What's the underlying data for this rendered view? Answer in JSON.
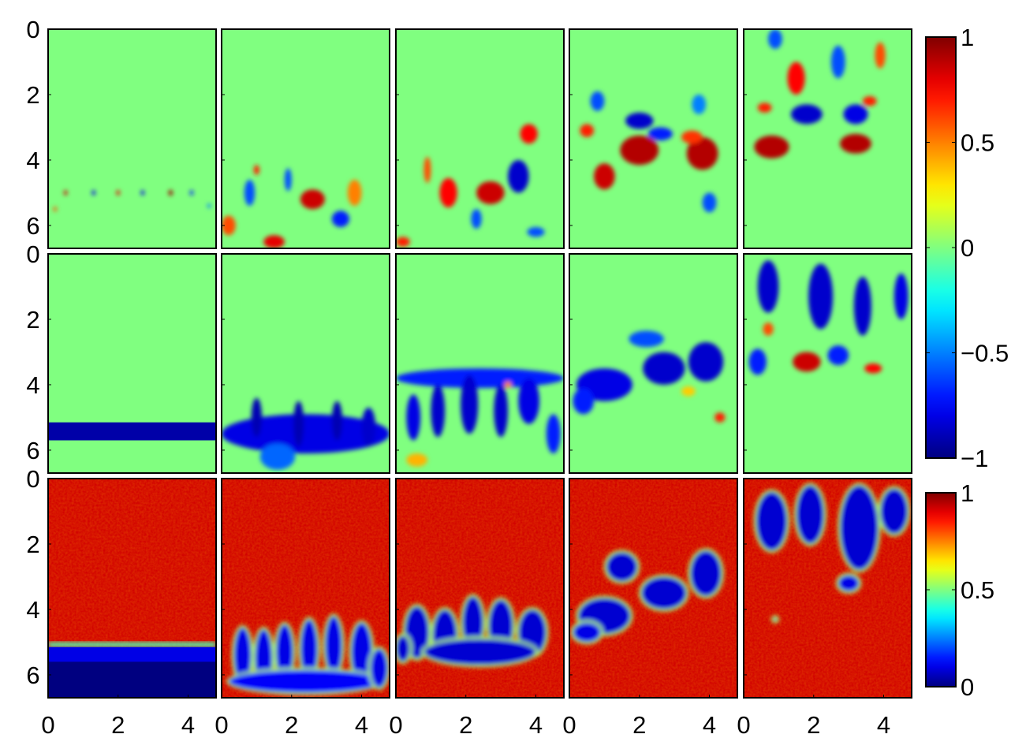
{
  "chart_data": {
    "type": "heatmap",
    "layout": {
      "rows": 3,
      "columns": 5
    },
    "x_axis": {
      "range": [
        0,
        4.8
      ],
      "ticks": [
        0,
        2,
        4
      ],
      "tick_labels": [
        "0",
        "2",
        "4"
      ]
    },
    "y_axis": {
      "range": [
        0,
        6.7
      ],
      "inverted": true,
      "ticks": [
        0,
        2,
        4,
        6
      ],
      "tick_labels": [
        "0",
        "2",
        "4",
        "6"
      ]
    },
    "colormap": "jet",
    "colorbars": [
      {
        "rows": [
          0,
          1
        ],
        "range": [
          -1,
          1
        ],
        "ticks": [
          1,
          0.5,
          0,
          -0.5,
          -1
        ],
        "tick_labels": [
          "1",
          "0.5",
          "0",
          "−0.5",
          "−1"
        ]
      },
      {
        "rows": [
          2
        ],
        "range": [
          0,
          1
        ],
        "ticks": [
          1,
          0.5,
          0
        ],
        "tick_labels": [
          "1",
          "0.5",
          "0"
        ]
      }
    ],
    "panels": [
      [
        {
          "background": 0.0,
          "blobs": [
            [
              0.5,
              5.0,
              0.05,
              0.08,
              0.85
            ],
            [
              1.3,
              5.0,
              0.05,
              0.08,
              -0.8
            ],
            [
              2.0,
              5.0,
              0.05,
              0.08,
              0.8
            ],
            [
              2.7,
              5.0,
              0.05,
              0.08,
              -0.8
            ],
            [
              3.5,
              5.0,
              0.06,
              0.09,
              0.95
            ],
            [
              4.1,
              5.0,
              0.05,
              0.08,
              -0.7
            ],
            [
              0.2,
              5.5,
              0.05,
              0.07,
              0.6
            ],
            [
              4.6,
              5.4,
              0.05,
              0.07,
              -0.5
            ]
          ]
        },
        {
          "background": 0.0,
          "blobs": [
            [
              2.6,
              5.2,
              0.35,
              0.3,
              0.85
            ],
            [
              1.5,
              6.5,
              0.3,
              0.2,
              0.8
            ],
            [
              3.4,
              5.8,
              0.25,
              0.25,
              -0.7
            ],
            [
              0.8,
              5.0,
              0.15,
              0.4,
              -0.6
            ],
            [
              1.9,
              4.6,
              0.1,
              0.35,
              -0.6
            ],
            [
              3.8,
              5.0,
              0.2,
              0.4,
              0.5
            ],
            [
              0.2,
              6.0,
              0.2,
              0.3,
              0.6
            ],
            [
              1.0,
              4.3,
              0.08,
              0.15,
              0.7
            ]
          ]
        },
        {
          "background": 0.0,
          "blobs": [
            [
              2.7,
              5.0,
              0.4,
              0.35,
              0.85
            ],
            [
              3.5,
              4.5,
              0.3,
              0.5,
              -0.85
            ],
            [
              1.5,
              5.0,
              0.25,
              0.45,
              0.75
            ],
            [
              3.8,
              3.2,
              0.25,
              0.3,
              0.75
            ],
            [
              0.9,
              4.3,
              0.1,
              0.4,
              0.6
            ],
            [
              2.3,
              5.8,
              0.15,
              0.3,
              -0.6
            ],
            [
              4.0,
              6.2,
              0.25,
              0.15,
              -0.6
            ],
            [
              0.2,
              6.5,
              0.2,
              0.15,
              0.7
            ]
          ]
        },
        {
          "background": 0.0,
          "blobs": [
            [
              2.0,
              3.7,
              0.55,
              0.45,
              0.9
            ],
            [
              3.8,
              3.8,
              0.45,
              0.5,
              0.9
            ],
            [
              1.0,
              4.5,
              0.3,
              0.4,
              0.85
            ],
            [
              2.0,
              2.8,
              0.4,
              0.25,
              -0.85
            ],
            [
              2.6,
              3.2,
              0.35,
              0.2,
              -0.7
            ],
            [
              0.5,
              3.1,
              0.2,
              0.2,
              0.7
            ],
            [
              0.8,
              2.2,
              0.2,
              0.3,
              -0.6
            ],
            [
              3.7,
              2.3,
              0.2,
              0.3,
              -0.5
            ],
            [
              4.0,
              5.3,
              0.2,
              0.3,
              -0.6
            ],
            [
              3.5,
              3.3,
              0.3,
              0.2,
              0.65
            ]
          ]
        },
        {
          "background": 0.0,
          "blobs": [
            [
              0.8,
              3.6,
              0.5,
              0.35,
              0.9
            ],
            [
              3.2,
              3.5,
              0.45,
              0.3,
              0.9
            ],
            [
              1.8,
              2.6,
              0.45,
              0.3,
              -0.85
            ],
            [
              3.2,
              2.6,
              0.35,
              0.3,
              -0.8
            ],
            [
              1.5,
              1.5,
              0.25,
              0.5,
              0.75
            ],
            [
              2.7,
              1.0,
              0.2,
              0.5,
              -0.6
            ],
            [
              3.9,
              0.8,
              0.15,
              0.4,
              0.6
            ],
            [
              3.6,
              2.2,
              0.2,
              0.15,
              0.7
            ],
            [
              0.6,
              2.4,
              0.2,
              0.15,
              0.7
            ],
            [
              0.9,
              0.3,
              0.2,
              0.3,
              -0.6
            ]
          ]
        }
      ],
      [
        {
          "background": 0.0,
          "blobs": [],
          "band": {
            "y0": 5.15,
            "y1": 5.7,
            "value": -0.92
          }
        },
        {
          "background": 0.0,
          "blobs": [
            [
              2.4,
              5.5,
              2.4,
              0.6,
              -0.8
            ],
            [
              1.0,
              5.0,
              0.15,
              0.6,
              -0.9
            ],
            [
              2.2,
              5.2,
              0.15,
              0.7,
              -0.9
            ],
            [
              3.3,
              5.1,
              0.15,
              0.6,
              -0.9
            ],
            [
              4.2,
              5.3,
              0.2,
              0.6,
              -0.85
            ],
            [
              1.6,
              6.2,
              0.5,
              0.4,
              -0.55
            ]
          ]
        },
        {
          "background": 0.0,
          "blobs": [
            [
              2.4,
              3.8,
              2.4,
              0.3,
              -0.7
            ],
            [
              1.2,
              4.8,
              0.2,
              0.8,
              -0.85
            ],
            [
              2.1,
              4.6,
              0.25,
              0.9,
              -0.85
            ],
            [
              3.0,
              4.8,
              0.2,
              0.8,
              -0.85
            ],
            [
              3.8,
              4.5,
              0.3,
              0.7,
              -0.8
            ],
            [
              0.5,
              5.0,
              0.2,
              0.7,
              -0.8
            ],
            [
              4.5,
              5.5,
              0.2,
              0.6,
              -0.7
            ],
            [
              3.2,
              4.0,
              0.1,
              0.1,
              0.5
            ],
            [
              0.6,
              6.3,
              0.3,
              0.2,
              0.4
            ]
          ]
        },
        {
          "background": 0.0,
          "blobs": [
            [
              1.0,
              4.0,
              0.8,
              0.5,
              -0.8
            ],
            [
              2.7,
              3.5,
              0.6,
              0.5,
              -0.85
            ],
            [
              3.9,
              3.3,
              0.5,
              0.6,
              -0.85
            ],
            [
              2.2,
              2.6,
              0.5,
              0.25,
              -0.6
            ],
            [
              0.4,
              4.5,
              0.3,
              0.4,
              -0.7
            ],
            [
              4.3,
              5.0,
              0.15,
              0.15,
              0.7
            ],
            [
              3.4,
              4.2,
              0.2,
              0.15,
              0.35
            ]
          ]
        },
        {
          "background": 0.0,
          "blobs": [
            [
              0.7,
              1.0,
              0.3,
              0.8,
              -0.85
            ],
            [
              2.2,
              1.3,
              0.35,
              1.0,
              -0.85
            ],
            [
              3.4,
              1.6,
              0.25,
              0.9,
              -0.85
            ],
            [
              4.5,
              1.3,
              0.2,
              0.7,
              -0.8
            ],
            [
              1.8,
              3.3,
              0.4,
              0.3,
              0.85
            ],
            [
              3.7,
              3.5,
              0.25,
              0.15,
              0.75
            ],
            [
              0.7,
              2.3,
              0.15,
              0.2,
              0.6
            ],
            [
              2.7,
              3.1,
              0.3,
              0.3,
              -0.7
            ],
            [
              0.4,
              3.3,
              0.25,
              0.4,
              -0.7
            ]
          ]
        }
      ],
      [
        {
          "background": 0.92,
          "blobs": [],
          "band": {
            "y0": 5.15,
            "y1": 6.7,
            "value": 0.1,
            "transition_y": 5.0,
            "deep_value": 0.0,
            "deep_y": 5.6
          }
        },
        {
          "background": 0.92,
          "blobs": [
            [
              0.6,
              5.4,
              0.25,
              0.85,
              0.1
            ],
            [
              1.2,
              5.5,
              0.25,
              0.9,
              0.1
            ],
            [
              1.8,
              5.3,
              0.25,
              0.85,
              0.1
            ],
            [
              2.5,
              5.2,
              0.25,
              0.9,
              0.1
            ],
            [
              3.2,
              5.1,
              0.25,
              0.9,
              0.1
            ],
            [
              4.0,
              5.3,
              0.3,
              0.9,
              0.1
            ],
            [
              2.4,
              6.2,
              2.2,
              0.35,
              0.12
            ],
            [
              4.5,
              5.8,
              0.25,
              0.6,
              0.1
            ]
          ]
        },
        {
          "background": 0.92,
          "blobs": [
            [
              0.6,
              4.7,
              0.35,
              0.8,
              0.08
            ],
            [
              1.4,
              4.8,
              0.35,
              0.8,
              0.08
            ],
            [
              2.2,
              4.4,
              0.3,
              0.8,
              0.08
            ],
            [
              3.0,
              4.5,
              0.35,
              0.8,
              0.08
            ],
            [
              3.9,
              4.7,
              0.4,
              0.7,
              0.08
            ],
            [
              2.4,
              5.3,
              1.6,
              0.4,
              0.08
            ],
            [
              0.2,
              5.2,
              0.2,
              0.4,
              0.08
            ]
          ]
        },
        {
          "background": 0.92,
          "blobs": [
            [
              1.0,
              4.2,
              0.75,
              0.55,
              0.08
            ],
            [
              1.5,
              2.7,
              0.45,
              0.45,
              0.08
            ],
            [
              2.7,
              3.5,
              0.65,
              0.5,
              0.08
            ],
            [
              3.9,
              2.9,
              0.45,
              0.7,
              0.08
            ],
            [
              0.5,
              4.7,
              0.4,
              0.3,
              0.1
            ]
          ]
        },
        {
          "background": 0.92,
          "blobs": [
            [
              0.8,
              1.3,
              0.45,
              0.9,
              0.08
            ],
            [
              1.9,
              1.1,
              0.4,
              0.9,
              0.08
            ],
            [
              3.3,
              1.5,
              0.55,
              1.3,
              0.08
            ],
            [
              4.3,
              1.0,
              0.4,
              0.7,
              0.08
            ],
            [
              3.0,
              3.2,
              0.3,
              0.25,
              0.1
            ],
            [
              0.9,
              4.3,
              0.05,
              0.05,
              0.1
            ]
          ]
        }
      ]
    ]
  }
}
